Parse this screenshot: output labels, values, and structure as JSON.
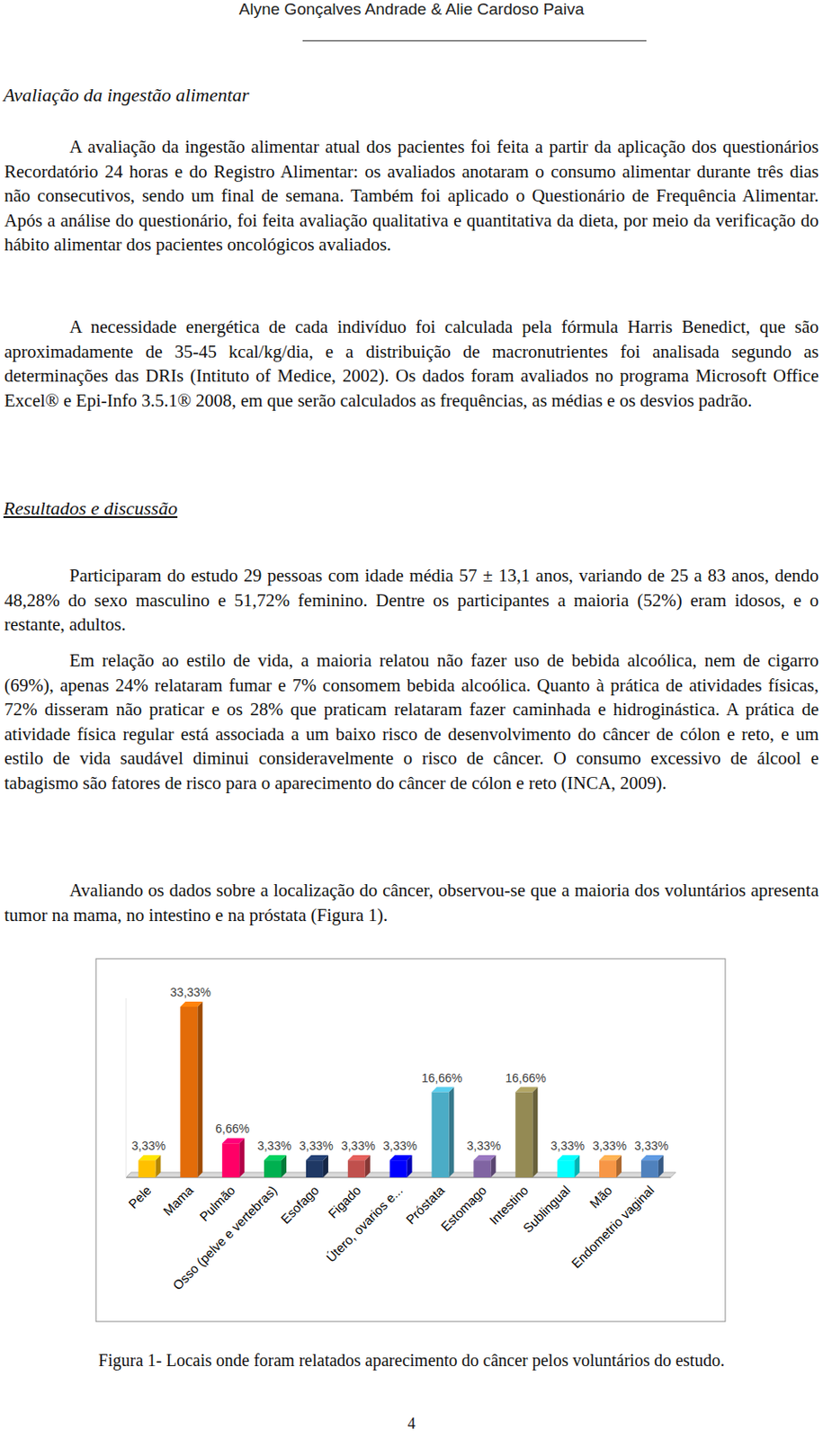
{
  "header": {
    "authors": "Alyne Gonçalves Andrade & Alie Cardoso Paiva"
  },
  "sections": [
    {
      "title": "Avaliação da ingestão alimentar",
      "paragraphs": [
        "A avaliação da ingestão alimentar atual dos pacientes foi feita a partir da aplicação dos questionários Recordatório 24 horas e  do Registro Alimentar: os avaliados anotaram o consumo alimentar durante três dias não consecutivos, sendo um final de semana. Também foi aplicado o Questionário de Frequência Alimentar. Após a análise do questionário, foi feita avaliação qualitativa e quantitativa da dieta, por meio da verificação do hábito alimentar dos pacientes oncológicos avaliados.",
        "A necessidade energética de cada indivíduo foi calculada pela fórmula Harris Benedict, que são aproximadamente de 35-45 kcal/kg/dia, e a distribuição de macronutrientes foi analisada segundo as determinações das DRIs (Intituto of Medice, 2002). Os dados foram avaliados no programa Microsoft Office Excel® e Epi-Info 3.5.1® 2008, em que serão calculados as frequências, as médias e os desvios padrão."
      ]
    },
    {
      "title": "Resultados e discussão",
      "paragraphs": [
        "Participaram do estudo 29 pessoas com idade média 57 ± 13,1 anos, variando de 25 a 83 anos, dendo 48,28% do sexo masculino e 51,72% feminino. Dentre os participantes a maioria (52%) eram idosos, e o restante, adultos.",
        "Em relação ao estilo de vida, a maioria relatou não fazer uso de bebida alcoólica, nem de cigarro (69%), apenas 24% relataram fumar e 7% consomem bebida alcoólica. Quanto à prática de atividades físicas, 72% disseram não praticar e os 28% que praticam relataram fazer caminhada e hidroginástica. A prática de atividade física regular está associada a um baixo risco de desenvolvimento do câncer de cólon e reto, e um estilo de vida saudável diminui consideravelmente o risco de câncer. O consumo excessivo de álcool e tabagismo são fatores de risco para o aparecimento do câncer de cólon e reto (INCA, 2009).",
        "Avaliando os dados sobre a localização do câncer, observou-se que a maioria dos voluntários apresenta tumor na mama, no intestino e na próstata (Figura 1)."
      ]
    }
  ],
  "chart_data": {
    "type": "bar",
    "categories": [
      "Pele",
      "Mama",
      "Pulmão",
      "Osso (pelve e vertebras)",
      "Esofago",
      "Figado",
      "Útero, ovarios e...",
      "Próstata",
      "Estomago",
      "Intestino",
      "Sublingual",
      "Mão",
      "Endometrio vaginal"
    ],
    "values": [
      3.33,
      33.33,
      6.66,
      3.33,
      3.33,
      3.33,
      3.33,
      16.66,
      3.33,
      16.66,
      3.33,
      3.33,
      3.33
    ],
    "value_labels": [
      "3,33%",
      "33,33%",
      "6,66%",
      "3,33%",
      "3,33%",
      "3,33%",
      "3,33%",
      "16,66%",
      "3,33%",
      "16,66%",
      "3,33%",
      "3,33%",
      "3,33%"
    ],
    "colors": [
      "#ffc000",
      "#e36c09",
      "#ff0066",
      "#00b050",
      "#1f3864",
      "#c0504d",
      "#0000ff",
      "#4bacc6",
      "#8064a2",
      "#948a54",
      "#00ffff",
      "#f79646",
      "#4f81bd"
    ],
    "ylim": [
      0,
      35
    ],
    "data_labels": true,
    "tick_labels": "x"
  },
  "figure_caption": "Figura 1- Locais onde foram relatados aparecimento do câncer pelos voluntários do estudo.",
  "page_number": "4"
}
